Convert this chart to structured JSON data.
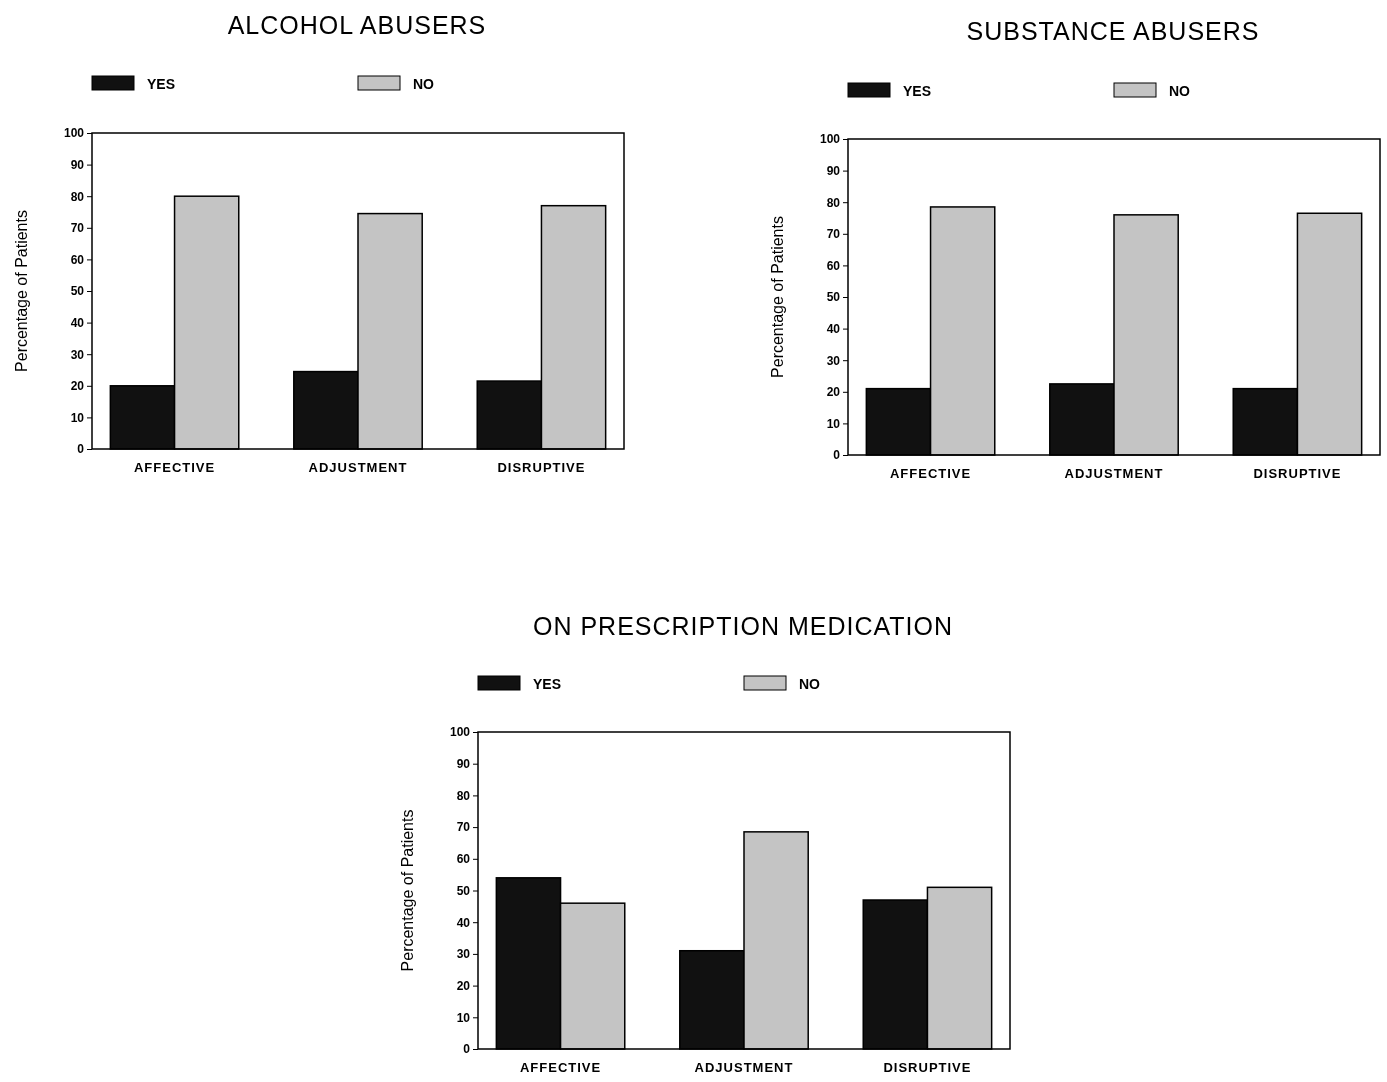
{
  "chart_data": [
    {
      "type": "bar",
      "title": "ALCOHOL ABUSERS",
      "ylabel": "Percentage of Patients",
      "categories": [
        "AFFECTIVE",
        "ADJUSTMENT",
        "DISRUPTIVE"
      ],
      "ylim": [
        0,
        100
      ],
      "yticks": [
        0,
        10,
        20,
        30,
        40,
        50,
        60,
        70,
        80,
        90,
        100
      ],
      "legend": "top left",
      "series": [
        {
          "name": "YES",
          "color": "#111111",
          "values": [
            20,
            24.5,
            21.5
          ]
        },
        {
          "name": "NO",
          "color": "#c4c4c4",
          "values": [
            80,
            74.5,
            77
          ]
        }
      ]
    },
    {
      "type": "bar",
      "title": "SUBSTANCE ABUSERS",
      "ylabel": "Percentage of Patients",
      "categories": [
        "AFFECTIVE",
        "ADJUSTMENT",
        "DISRUPTIVE"
      ],
      "ylim": [
        0,
        100
      ],
      "yticks": [
        0,
        10,
        20,
        30,
        40,
        50,
        60,
        70,
        80,
        90,
        100
      ],
      "legend": "top left",
      "series": [
        {
          "name": "YES",
          "color": "#111111",
          "values": [
            21,
            22.5,
            21
          ]
        },
        {
          "name": "NO",
          "color": "#c4c4c4",
          "values": [
            78.5,
            76,
            76.5
          ]
        }
      ]
    },
    {
      "type": "bar",
      "title": "ON PRESCRIPTION MEDICATION",
      "ylabel": "Percentage of Patients",
      "categories": [
        "AFFECTIVE",
        "ADJUSTMENT",
        "DISRUPTIVE"
      ],
      "ylim": [
        0,
        100
      ],
      "yticks": [
        0,
        10,
        20,
        30,
        40,
        50,
        60,
        70,
        80,
        90,
        100
      ],
      "legend": "top left",
      "series": [
        {
          "name": "YES",
          "color": "#111111",
          "values": [
            54,
            31,
            47
          ]
        },
        {
          "name": "NO",
          "color": "#c4c4c4",
          "values": [
            46,
            68.5,
            51
          ]
        }
      ]
    }
  ]
}
